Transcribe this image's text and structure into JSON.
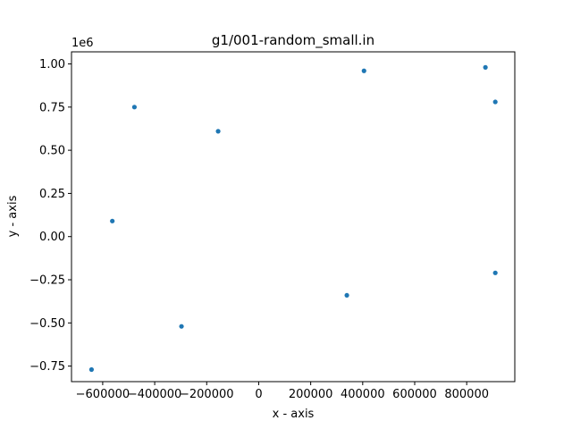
{
  "chart_data": {
    "type": "scatter",
    "title": "g1/001-random_small.in",
    "xlabel": "x - axis",
    "ylabel": "y - axis",
    "xlim": [
      -720000,
      985000
    ],
    "ylim": [
      -0.84,
      1.07
    ],
    "y_multiplier_label": "1e6",
    "x_ticks": [
      {
        "value": -600000,
        "label": "−600000"
      },
      {
        "value": -400000,
        "label": "−400000"
      },
      {
        "value": -200000,
        "label": "−200000"
      },
      {
        "value": 0,
        "label": "0"
      },
      {
        "value": 200000,
        "label": "200000"
      },
      {
        "value": 400000,
        "label": "400000"
      },
      {
        "value": 600000,
        "label": "600000"
      },
      {
        "value": 800000,
        "label": "800000"
      }
    ],
    "y_ticks": [
      {
        "value": -0.75,
        "label": "−0.75"
      },
      {
        "value": -0.5,
        "label": "−0.50"
      },
      {
        "value": -0.25,
        "label": "−0.25"
      },
      {
        "value": 0.0,
        "label": "0.00"
      },
      {
        "value": 0.25,
        "label": "0.25"
      },
      {
        "value": 0.5,
        "label": "0.50"
      },
      {
        "value": 0.75,
        "label": "0.75"
      },
      {
        "value": 1.0,
        "label": "1.00"
      }
    ],
    "series": [
      {
        "color": "#1f77b4",
        "points": [
          {
            "x": -643000,
            "y": -0.77
          },
          {
            "x": -563000,
            "y": 0.09
          },
          {
            "x": -478000,
            "y": 0.75
          },
          {
            "x": -297000,
            "y": -0.52
          },
          {
            "x": -156000,
            "y": 0.61
          },
          {
            "x": 339000,
            "y": -0.34
          },
          {
            "x": 405000,
            "y": 0.96
          },
          {
            "x": 872000,
            "y": 0.98
          },
          {
            "x": 910000,
            "y": 0.78
          },
          {
            "x": 910000,
            "y": -0.21
          }
        ]
      }
    ],
    "grid": false
  }
}
